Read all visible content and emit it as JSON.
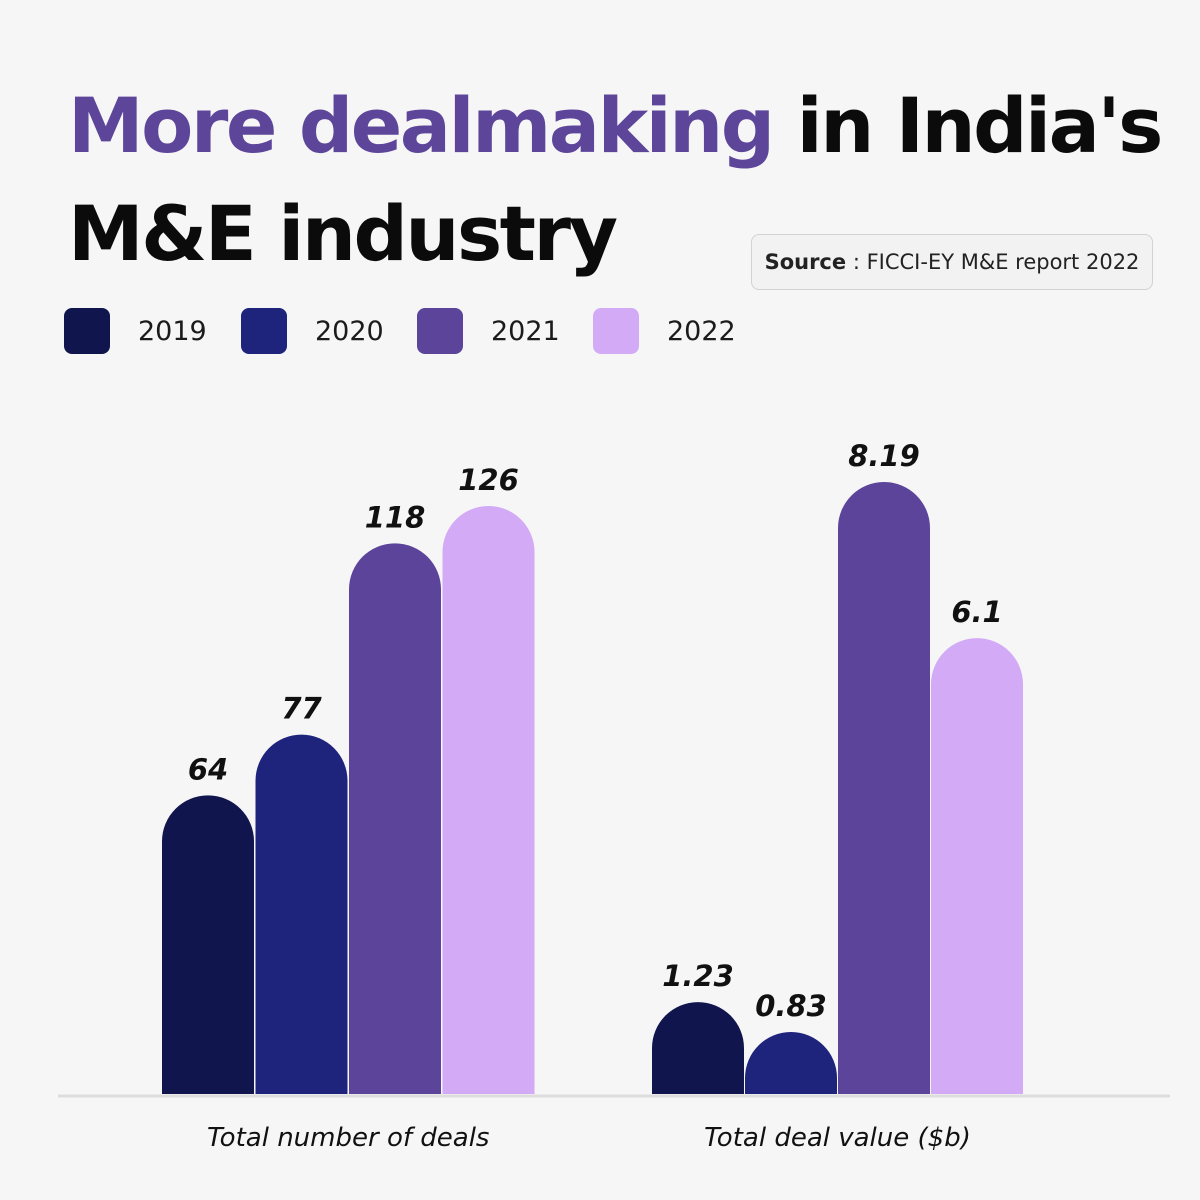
{
  "header": {
    "title_highlight": "More dealmaking",
    "title_rest_1": " in India's",
    "title_rest_2": "M&E industry"
  },
  "source": {
    "label": "Source",
    "separator": " : ",
    "text": "FICCI-EY M&E report 2022"
  },
  "legend": [
    {
      "label": "2019",
      "color": "#10164d"
    },
    {
      "label": "2020",
      "color": "#1e237c"
    },
    {
      "label": "2021",
      "color": "#5b449a"
    },
    {
      "label": "2022",
      "color": "#d2aaf5"
    }
  ],
  "chart_data": [
    {
      "type": "bar",
      "xlabel": "Total number of deals",
      "categories": [
        "2019",
        "2020",
        "2021",
        "2022"
      ],
      "values": [
        64,
        77,
        118,
        126
      ],
      "value_labels": [
        "64",
        "77",
        "118",
        "126"
      ],
      "ylim": [
        0,
        130
      ]
    },
    {
      "type": "bar",
      "xlabel": "Total deal value ($b)",
      "categories": [
        "2019",
        "2020",
        "2021",
        "2022"
      ],
      "values": [
        1.23,
        0.83,
        8.19,
        6.1
      ],
      "value_labels": [
        "1.23",
        "0.83",
        "8.19",
        "6.1"
      ],
      "ylim": [
        0,
        8.5
      ]
    }
  ]
}
